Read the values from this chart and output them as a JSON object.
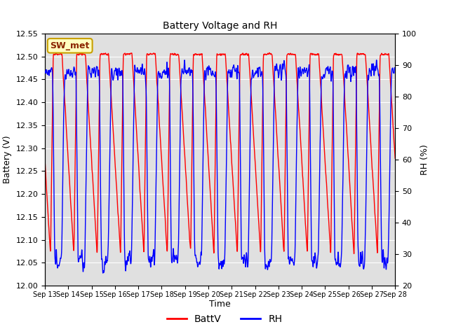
{
  "title": "Battery Voltage and RH",
  "xlabel": "Time",
  "ylabel_left": "Battery (V)",
  "ylabel_right": "RH (%)",
  "ylim_left": [
    12.0,
    12.55
  ],
  "ylim_right": [
    20,
    100
  ],
  "yticks_left": [
    12.0,
    12.05,
    12.1,
    12.15,
    12.2,
    12.25,
    12.3,
    12.35,
    12.4,
    12.45,
    12.5,
    12.55
  ],
  "yticks_right": [
    20,
    30,
    40,
    50,
    60,
    70,
    80,
    90,
    100
  ],
  "xticklabels": [
    "Sep 13",
    "Sep 14",
    "Sep 15",
    "Sep 16",
    "Sep 17",
    "Sep 18",
    "Sep 19",
    "Sep 20",
    "Sep 21",
    "Sep 22",
    "Sep 23",
    "Sep 24",
    "Sep 25",
    "Sep 26",
    "Sep 27",
    "Sep 28"
  ],
  "color_battv": "#ff0000",
  "color_rh": "#0000ff",
  "label_battv": "BattV",
  "label_rh": "RH",
  "station_label": "SW_met",
  "plot_bg": "#e0e0e0",
  "n_days": 15,
  "seed": 42
}
